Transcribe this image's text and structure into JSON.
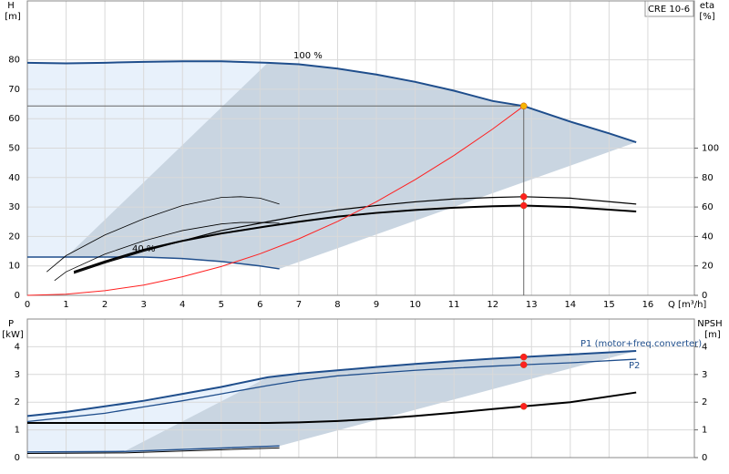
{
  "chart_data": [
    {
      "type": "line",
      "label": "CRE 10-6",
      "y_label": "H",
      "y_unit": "[m]",
      "y2_label": "eta",
      "y2_unit": "[%]",
      "x_label": "Q [m³/h]",
      "xlim": [
        0,
        17.2
      ],
      "xticks": [
        0,
        1,
        2,
        3,
        4,
        5,
        6,
        7,
        8,
        9,
        10,
        11,
        12,
        13,
        14,
        15,
        16
      ],
      "ylim": [
        0,
        100
      ],
      "yticks": [
        0,
        10,
        20,
        30,
        40,
        50,
        60,
        70,
        80
      ],
      "y2lim": [
        0,
        200
      ],
      "y2ticks": [
        0,
        20,
        40,
        60,
        80,
        100
      ],
      "grid": true,
      "series": [
        {
          "name": "100 %",
          "color": "#1f4e8c",
          "width": 2,
          "marker_at": 13,
          "marker_color": "#f7b500",
          "x": [
            0,
            1,
            2,
            3,
            4,
            5,
            6.2,
            7,
            8,
            9,
            10,
            11,
            12,
            12.8,
            14,
            15,
            15.7
          ],
          "values": [
            79,
            78.8,
            79,
            79.3,
            79.5,
            79.5,
            79,
            78.5,
            77,
            75,
            72.5,
            69.5,
            66,
            64.3,
            59,
            55,
            52
          ]
        },
        {
          "name": "40 %",
          "color": "#1f4e8c",
          "width": 1.5,
          "x": [
            0,
            1,
            2,
            3,
            4,
            5,
            6,
            6.5
          ],
          "values": [
            13,
            13,
            13,
            13,
            12.5,
            11.5,
            10,
            9
          ]
        },
        {
          "axis": "y2",
          "color": "#000000",
          "width": 2,
          "marker_at": 12,
          "marker_color": "#ff2020",
          "x": [
            1.2,
            2,
            3,
            4,
            5,
            6.2,
            7,
            8,
            9,
            10,
            11,
            12,
            12.8,
            14,
            15.7
          ],
          "values": [
            16,
            23,
            31,
            37,
            42,
            47,
            50,
            53.5,
            56,
            58,
            59.5,
            60.5,
            61,
            60,
            57
          ]
        },
        {
          "axis": "y2",
          "color": "#000000",
          "width": 1.2,
          "marker_at": 12,
          "marker_color": "#ff2020",
          "x": [
            1.2,
            2,
            3,
            4,
            5,
            6.2,
            7,
            8,
            9,
            10,
            11,
            12,
            12.8,
            14,
            15.7
          ],
          "values": [
            15,
            22,
            30,
            37,
            44,
            50,
            54,
            58,
            61,
            63.5,
            65.5,
            66.5,
            67,
            66,
            62
          ]
        },
        {
          "axis": "y2",
          "color": "#000000",
          "width": 0.8,
          "x": [
            0.5,
            1,
            2,
            3,
            4,
            5,
            5.5,
            6,
            6.5
          ],
          "values": [
            16,
            27,
            41,
            52,
            61,
            66.5,
            67,
            66,
            62
          ]
        },
        {
          "axis": "y2",
          "color": "#000000",
          "width": 0.8,
          "x": [
            0.7,
            1,
            2,
            3,
            4,
            5,
            5.5,
            6,
            6.5
          ],
          "values": [
            10,
            16,
            28,
            37,
            44,
            48.5,
            49.5,
            49.5,
            49
          ]
        },
        {
          "color": "#ff2020",
          "width": 1,
          "x": [
            0,
            1,
            2,
            3,
            4,
            5,
            6,
            7,
            8,
            9,
            10,
            11,
            12,
            12.8
          ],
          "values": [
            0,
            0.4,
            1.6,
            3.5,
            6.3,
            9.8,
            14.1,
            19.2,
            25.1,
            31.8,
            39.3,
            47.5,
            56.5,
            64.3
          ]
        }
      ]
    },
    {
      "type": "line",
      "y_label": "P",
      "y_unit": "[kW]",
      "y2_label": "NPSH",
      "y2_unit": "[m]",
      "xlim": [
        0,
        17.2
      ],
      "ylim": [
        0,
        5
      ],
      "yticks": [
        0,
        1,
        2,
        3,
        4
      ],
      "y2lim": [
        0,
        5
      ],
      "y2ticks": [
        0,
        1,
        2,
        3,
        4
      ],
      "grid": true,
      "series": [
        {
          "name": "P1 (motor+freq.converter)",
          "color": "#1f4e8c",
          "width": 2,
          "marker_at": 13,
          "marker_color": "#ff2020",
          "x": [
            0,
            1,
            2,
            3,
            4,
            5,
            6.2,
            7,
            8,
            9,
            10,
            11,
            12,
            12.8,
            14,
            15.7
          ],
          "values": [
            1.5,
            1.65,
            1.85,
            2.05,
            2.3,
            2.55,
            2.9,
            3.03,
            3.15,
            3.27,
            3.38,
            3.48,
            3.57,
            3.63,
            3.72,
            3.85
          ]
        },
        {
          "name": "P2",
          "color": "#1f4e8c",
          "width": 1.3,
          "marker_at": 13,
          "marker_color": "#ff2020",
          "x": [
            0,
            1,
            2,
            3,
            4,
            5,
            6.2,
            7,
            8,
            9,
            10,
            11,
            12,
            12.8,
            14,
            15.7
          ],
          "values": [
            1.3,
            1.45,
            1.6,
            1.83,
            2.05,
            2.3,
            2.6,
            2.78,
            2.95,
            3.05,
            3.15,
            3.23,
            3.3,
            3.35,
            3.42,
            3.55
          ]
        },
        {
          "axis": "y2",
          "color": "#000000",
          "width": 2,
          "marker_at": 8,
          "marker_color": "#ff2020",
          "x": [
            0,
            6.2,
            7,
            8,
            9,
            10,
            11,
            12,
            12.8,
            14,
            15.7
          ],
          "values": [
            1.25,
            1.25,
            1.27,
            1.32,
            1.4,
            1.5,
            1.62,
            1.75,
            1.85,
            2.0,
            2.35
          ]
        },
        {
          "color": "#1f4e8c",
          "width": 1.5,
          "x": [
            0,
            2.5,
            6.5
          ],
          "values": [
            0.2,
            0.22,
            0.42
          ]
        },
        {
          "color": "#000000",
          "width": 1,
          "x": [
            0,
            2.5,
            6.5
          ],
          "values": [
            0.15,
            0.17,
            0.35
          ]
        }
      ]
    }
  ]
}
